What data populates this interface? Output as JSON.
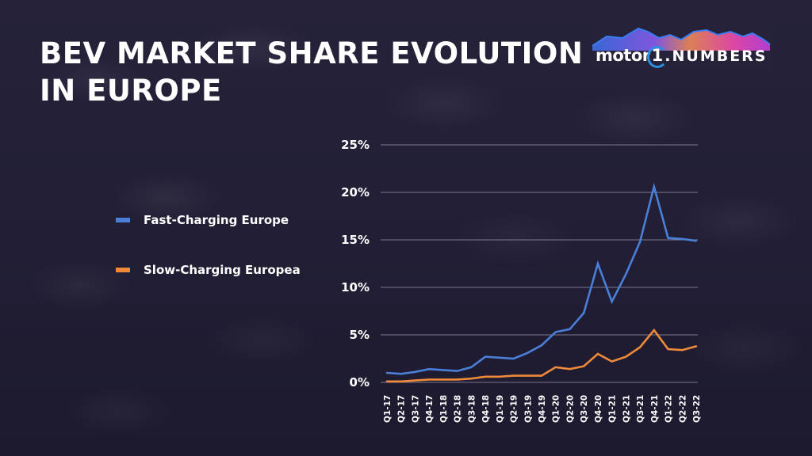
{
  "header": {
    "title_line1": "BEV MARKET SHARE EVOLUTION",
    "title_line2": "IN EUROPE"
  },
  "logo": {
    "part1": "motor",
    "part2": "1",
    "part3": ".NUMBERS"
  },
  "colors": {
    "fast": "#4a7fd8",
    "slow": "#ef8a3a",
    "grid": "#8a879e",
    "background": "#201d33"
  },
  "chart_data": {
    "type": "line",
    "title": "BEV MARKET SHARE EVOLUTION IN EUROPE",
    "xlabel": "",
    "ylabel": "",
    "ylim": [
      0,
      25
    ],
    "yticks": [
      0,
      5,
      10,
      15,
      20,
      25
    ],
    "ytick_labels": [
      "0%",
      "5%",
      "10%",
      "15%",
      "20%",
      "25%"
    ],
    "grid": true,
    "legend_position": "left",
    "x": [
      "Q1-17",
      "Q2-17",
      "Q3-17",
      "Q4-17",
      "Q1-18",
      "Q2-18",
      "Q3-18",
      "Q4-18",
      "Q1-19",
      "Q2-19",
      "Q3-19",
      "Q4-19",
      "Q1-20",
      "Q2-20",
      "Q3-20",
      "Q4-20",
      "Q1-21",
      "Q2-21",
      "Q3-21",
      "Q4-21",
      "Q1-22",
      "Q2-22",
      "Q3-22"
    ],
    "series": [
      {
        "name": "Fast-Charging Europe",
        "color": "#4a7fd8",
        "values": [
          1.0,
          0.9,
          1.1,
          1.4,
          1.3,
          1.2,
          1.6,
          2.7,
          2.6,
          2.5,
          3.1,
          3.9,
          5.3,
          5.6,
          7.3,
          12.5,
          8.5,
          11.4,
          14.8,
          20.6,
          15.2,
          15.1,
          14.9
        ]
      },
      {
        "name": "Slow-Charging Europea",
        "color": "#ef8a3a",
        "values": [
          0.1,
          0.1,
          0.2,
          0.3,
          0.3,
          0.3,
          0.4,
          0.6,
          0.6,
          0.7,
          0.7,
          0.7,
          1.6,
          1.4,
          1.7,
          3.0,
          2.2,
          2.7,
          3.7,
          5.5,
          3.5,
          3.4,
          3.8
        ]
      }
    ]
  }
}
